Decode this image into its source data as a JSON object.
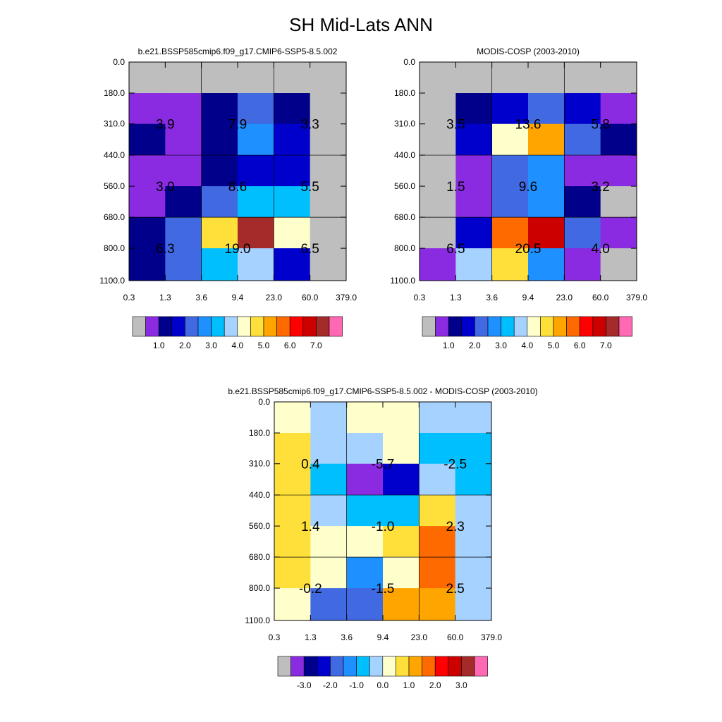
{
  "title": "SH Mid-Lats ANN",
  "colors": {
    "abs": [
      "#bebebe",
      "#8a2be2",
      "#00008b",
      "#0000cd",
      "#4169e1",
      "#1e90ff",
      "#00bfff",
      "#a6d2ff",
      "#ffffcc",
      "#ffe03b",
      "#ffa500",
      "#ff6a00",
      "#ff0000",
      "#cd0000",
      "#a52a2a",
      "#ff69b4"
    ],
    "diff": [
      "#bebebe",
      "#8a2be2",
      "#00008b",
      "#0000cd",
      "#4169e1",
      "#1e90ff",
      "#00bfff",
      "#a6d2ff",
      "#ffffcc",
      "#ffe03b",
      "#ffa500",
      "#ff6a00",
      "#ff0000",
      "#cd0000",
      "#a52a2a",
      "#ff69b4"
    ]
  },
  "chart_data": [
    {
      "type": "heatmap",
      "title": "b.e21.BSSP585cmip6.f09_g17.CMIP6-SSP5-8.5.002",
      "x_ticks": [
        "0.3",
        "1.3",
        "3.6",
        "9.4",
        "23.0",
        "60.0",
        "379.0"
      ],
      "y_ticks": [
        "0.0",
        "180.0",
        "310.0",
        "440.0",
        "560.0",
        "680.0",
        "800.0",
        "1100.0"
      ],
      "cell_color_index": [
        [
          0,
          0,
          0,
          0,
          0,
          0
        ],
        [
          1,
          1,
          2,
          4,
          2,
          0
        ],
        [
          2,
          1,
          2,
          5,
          3,
          0
        ],
        [
          1,
          1,
          2,
          3,
          3,
          0
        ],
        [
          1,
          2,
          4,
          6,
          6,
          0
        ],
        [
          2,
          4,
          9,
          14,
          8,
          0
        ],
        [
          2,
          4,
          6,
          7,
          3,
          0
        ]
      ],
      "labels": [
        {
          "col": 0,
          "row": 1,
          "text": "3.9"
        },
        {
          "col": 1,
          "row": 1,
          "text": "7.9"
        },
        {
          "col": 2,
          "row": 1,
          "text": "3.3"
        },
        {
          "col": 0,
          "row": 2,
          "text": "3.0"
        },
        {
          "col": 1,
          "row": 2,
          "text": "8.6"
        },
        {
          "col": 2,
          "row": 2,
          "text": "5.5"
        },
        {
          "col": 0,
          "row": 3,
          "text": "6.3"
        },
        {
          "col": 1,
          "row": 3,
          "text": "19.0"
        },
        {
          "col": 2,
          "row": 3,
          "text": "6.5"
        }
      ],
      "colorbar": {
        "palette": "abs",
        "labels": [
          "1.0",
          "2.0",
          "3.0",
          "4.0",
          "5.0",
          "6.0",
          "7.0"
        ]
      }
    },
    {
      "type": "heatmap",
      "title": "MODIS-COSP (2003-2010)",
      "x_ticks": [
        "0.3",
        "1.3",
        "3.6",
        "9.4",
        "23.0",
        "60.0",
        "379.0"
      ],
      "y_ticks": [
        "0.0",
        "180.0",
        "310.0",
        "440.0",
        "560.0",
        "680.0",
        "800.0",
        "1100.0"
      ],
      "cell_color_index": [
        [
          0,
          0,
          0,
          0,
          0,
          0
        ],
        [
          0,
          2,
          3,
          4,
          3,
          1
        ],
        [
          0,
          3,
          8,
          10,
          4,
          2
        ],
        [
          0,
          1,
          4,
          5,
          1,
          1
        ],
        [
          0,
          1,
          4,
          5,
          2,
          0
        ],
        [
          0,
          3,
          11,
          13,
          4,
          1
        ],
        [
          1,
          7,
          9,
          5,
          1,
          0
        ]
      ],
      "labels": [
        {
          "col": 0,
          "row": 1,
          "text": "3.5"
        },
        {
          "col": 1,
          "row": 1,
          "text": "13.6"
        },
        {
          "col": 2,
          "row": 1,
          "text": "5.8"
        },
        {
          "col": 0,
          "row": 2,
          "text": "1.5"
        },
        {
          "col": 1,
          "row": 2,
          "text": "9.6"
        },
        {
          "col": 2,
          "row": 2,
          "text": "3.2"
        },
        {
          "col": 0,
          "row": 3,
          "text": "6.5"
        },
        {
          "col": 1,
          "row": 3,
          "text": "20.5"
        },
        {
          "col": 2,
          "row": 3,
          "text": "4.0"
        }
      ],
      "colorbar": {
        "palette": "abs",
        "labels": [
          "1.0",
          "2.0",
          "3.0",
          "4.0",
          "5.0",
          "6.0",
          "7.0"
        ]
      }
    },
    {
      "type": "heatmap",
      "title": "b.e21.BSSP585cmip6.f09_g17.CMIP6-SSP5-8.5.002 - MODIS-COSP (2003-2010)",
      "x_ticks": [
        "0.3",
        "1.3",
        "3.6",
        "9.4",
        "23.0",
        "60.0",
        "379.0"
      ],
      "y_ticks": [
        "0.0",
        "180.0",
        "310.0",
        "440.0",
        "560.0",
        "680.0",
        "800.0",
        "1100.0"
      ],
      "cell_color_index": [
        [
          8,
          7,
          8,
          8,
          7,
          7
        ],
        [
          9,
          7,
          7,
          8,
          6,
          6
        ],
        [
          9,
          6,
          1,
          3,
          7,
          6
        ],
        [
          9,
          7,
          6,
          6,
          9,
          7
        ],
        [
          9,
          8,
          8,
          9,
          11,
          7
        ],
        [
          9,
          8,
          5,
          8,
          11,
          7
        ],
        [
          8,
          4,
          4,
          10,
          10,
          7
        ]
      ],
      "labels": [
        {
          "col": 0,
          "row": 1,
          "text": "0.4"
        },
        {
          "col": 1,
          "row": 1,
          "text": "-5.7"
        },
        {
          "col": 2,
          "row": 1,
          "text": "-2.5"
        },
        {
          "col": 0,
          "row": 2,
          "text": "1.4"
        },
        {
          "col": 1,
          "row": 2,
          "text": "-1.0"
        },
        {
          "col": 2,
          "row": 2,
          "text": "2.3"
        },
        {
          "col": 0,
          "row": 3,
          "text": "-0.2"
        },
        {
          "col": 1,
          "row": 3,
          "text": "-1.5"
        },
        {
          "col": 2,
          "row": 3,
          "text": "2.5"
        }
      ],
      "colorbar": {
        "palette": "diff",
        "labels": [
          "-3.0",
          "-2.0",
          "-1.0",
          "0.0",
          "1.0",
          "2.0",
          "3.0"
        ]
      }
    }
  ]
}
